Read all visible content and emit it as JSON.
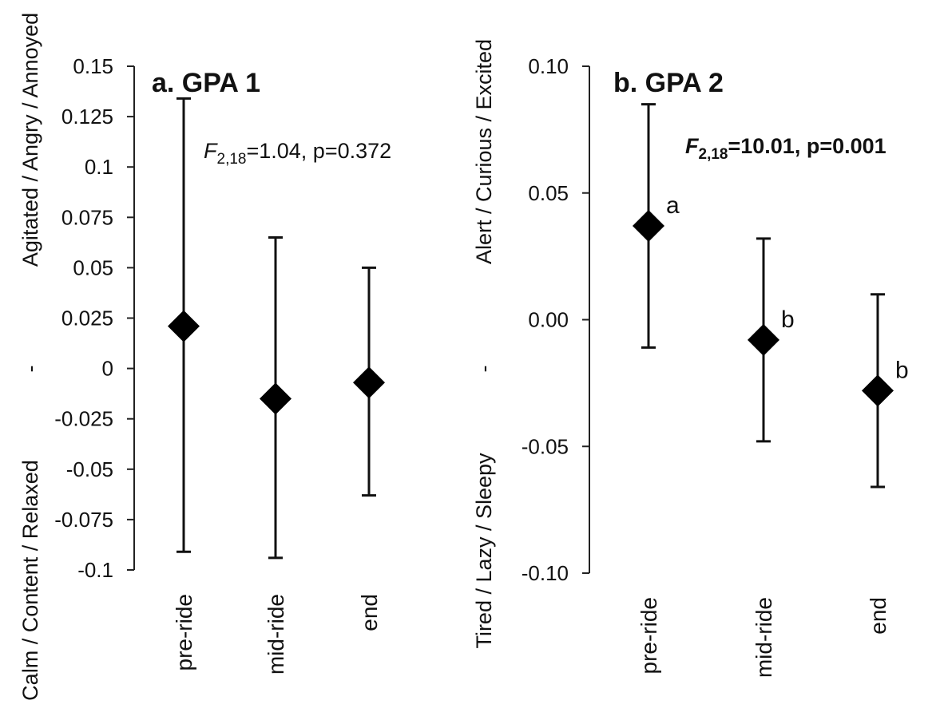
{
  "chart_data": [
    {
      "type": "scatter",
      "title": "a. GPA 1",
      "stat": {
        "f_symbol": "F",
        "f_sub": "2,18",
        "f_rest": "=1.04, p=0.372"
      },
      "ylabel": {
        "top": "Agitated / Angry / Annoyed",
        "mid": "-",
        "bottom": "Calm / Content / Relaxed"
      },
      "ylim": [
        -0.1,
        0.15
      ],
      "yticks": [
        {
          "value": 0.15,
          "label": "0.15"
        },
        {
          "value": 0.125,
          "label": "0.125"
        },
        {
          "value": 0.1,
          "label": "0.1"
        },
        {
          "value": 0.075,
          "label": "0.075"
        },
        {
          "value": 0.05,
          "label": "0.05"
        },
        {
          "value": 0.025,
          "label": "0.025"
        },
        {
          "value": 0,
          "label": "0"
        },
        {
          "value": -0.025,
          "label": "-0.025"
        },
        {
          "value": -0.05,
          "label": "-0.05"
        },
        {
          "value": -0.075,
          "label": "-0.075"
        },
        {
          "value": -0.1,
          "label": "-0.1"
        }
      ],
      "categories": [
        "pre-ride",
        "mid-ride",
        "end"
      ],
      "series": [
        {
          "values": [
            0.021,
            -0.015,
            -0.007
          ],
          "err_high": [
            0.134,
            0.065,
            0.05
          ],
          "err_low": [
            -0.091,
            -0.094,
            -0.063
          ],
          "letters": [
            "",
            "",
            ""
          ]
        }
      ]
    },
    {
      "type": "scatter",
      "title": "b. GPA 2",
      "stat": {
        "f_symbol": "F",
        "f_sub": "2,18",
        "f_rest": "=10.01, p=0.001"
      },
      "ylabel": {
        "top": "Alert / Curious / Excited",
        "mid": "-",
        "bottom": "Tired / Lazy / Sleepy"
      },
      "ylim": [
        -0.1,
        0.1
      ],
      "yticks": [
        {
          "value": 0.1,
          "label": "0.10"
        },
        {
          "value": 0.05,
          "label": "0.05"
        },
        {
          "value": 0,
          "label": "0.00"
        },
        {
          "value": -0.05,
          "label": "-0.05"
        },
        {
          "value": -0.1,
          "label": "-0.10"
        }
      ],
      "categories": [
        "pre-ride",
        "mid-ride",
        "end"
      ],
      "series": [
        {
          "values": [
            0.037,
            -0.008,
            -0.028
          ],
          "err_high": [
            0.085,
            0.032,
            0.01
          ],
          "err_low": [
            -0.011,
            -0.048,
            -0.066
          ],
          "letters": [
            "a",
            "b",
            "b"
          ]
        }
      ]
    }
  ]
}
